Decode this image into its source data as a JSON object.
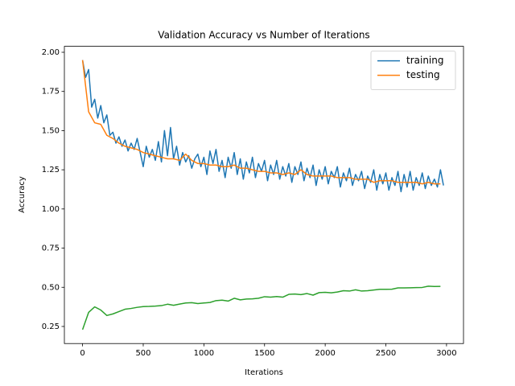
{
  "chart_data": {
    "type": "line",
    "title": "Validation Accuracy vs Number of Iterations",
    "x_label": "Iterations",
    "y_label": "Accuracy",
    "xlim": [
      -150,
      3140
    ],
    "ylim": [
      0.141,
      2.038
    ],
    "xticks": [
      0,
      500,
      1000,
      1500,
      2000,
      2500,
      3000
    ],
    "yticks": [
      0.25,
      {
        "value": 0.5,
        "label": "0.50"
      },
      0.75,
      {
        "value": 1,
        "label": "1.00"
      },
      1.25,
      {
        "value": 1.5,
        "label": "1.50"
      },
      1.75,
      {
        "value": 2,
        "label": "2.00"
      }
    ],
    "legend": "upper right",
    "series": [
      {
        "name": "training",
        "color": "#1f77b4",
        "x": [
          0,
          25,
          50,
          75,
          100,
          125,
          150,
          175,
          200,
          225,
          250,
          275,
          300,
          325,
          350,
          375,
          400,
          425,
          450,
          475,
          500,
          525,
          550,
          575,
          600,
          625,
          650,
          675,
          700,
          725,
          750,
          775,
          800,
          825,
          850,
          875,
          900,
          925,
          950,
          975,
          1000,
          1025,
          1050,
          1075,
          1100,
          1125,
          1150,
          1175,
          1200,
          1225,
          1250,
          1275,
          1300,
          1325,
          1350,
          1375,
          1400,
          1425,
          1450,
          1475,
          1500,
          1525,
          1550,
          1575,
          1600,
          1625,
          1650,
          1675,
          1700,
          1725,
          1750,
          1775,
          1800,
          1825,
          1850,
          1875,
          1900,
          1925,
          1950,
          1975,
          2000,
          2025,
          2050,
          2075,
          2100,
          2125,
          2150,
          2175,
          2200,
          2225,
          2250,
          2275,
          2300,
          2325,
          2350,
          2375,
          2400,
          2425,
          2450,
          2475,
          2500,
          2525,
          2550,
          2575,
          2600,
          2625,
          2650,
          2675,
          2700,
          2725,
          2750,
          2775,
          2800,
          2825,
          2850,
          2875,
          2900,
          2925,
          2950,
          2975
        ],
        "values": [
          1.95,
          1.84,
          1.89,
          1.65,
          1.7,
          1.58,
          1.66,
          1.55,
          1.6,
          1.47,
          1.49,
          1.42,
          1.46,
          1.4,
          1.44,
          1.37,
          1.42,
          1.38,
          1.45,
          1.36,
          1.27,
          1.4,
          1.33,
          1.38,
          1.31,
          1.43,
          1.3,
          1.5,
          1.34,
          1.52,
          1.32,
          1.4,
          1.28,
          1.36,
          1.3,
          1.34,
          1.26,
          1.32,
          1.35,
          1.27,
          1.33,
          1.22,
          1.37,
          1.29,
          1.38,
          1.24,
          1.31,
          1.2,
          1.33,
          1.26,
          1.36,
          1.22,
          1.32,
          1.19,
          1.3,
          1.23,
          1.33,
          1.2,
          1.29,
          1.24,
          1.31,
          1.18,
          1.28,
          1.22,
          1.31,
          1.19,
          1.27,
          1.21,
          1.29,
          1.17,
          1.27,
          1.22,
          1.3,
          1.18,
          1.26,
          1.2,
          1.28,
          1.15,
          1.25,
          1.19,
          1.27,
          1.16,
          1.24,
          1.2,
          1.27,
          1.14,
          1.23,
          1.18,
          1.26,
          1.15,
          1.22,
          1.18,
          1.24,
          1.13,
          1.21,
          1.17,
          1.25,
          1.12,
          1.22,
          1.16,
          1.23,
          1.12,
          1.2,
          1.15,
          1.24,
          1.11,
          1.22,
          1.14,
          1.24,
          1.12,
          1.2,
          1.15,
          1.23,
          1.13,
          1.21,
          1.15,
          1.19,
          1.14,
          1.25,
          1.15
        ]
      },
      {
        "name": "testing",
        "color": "#ff7f0e",
        "x": [
          0,
          50,
          100,
          150,
          200,
          250,
          300,
          350,
          400,
          450,
          500,
          550,
          600,
          650,
          700,
          750,
          800,
          850,
          900,
          950,
          1000,
          1050,
          1100,
          1150,
          1200,
          1250,
          1300,
          1350,
          1400,
          1450,
          1500,
          1550,
          1600,
          1650,
          1700,
          1750,
          1800,
          1850,
          1900,
          1950,
          2000,
          2050,
          2100,
          2150,
          2200,
          2250,
          2300,
          2350,
          2400,
          2450,
          2500,
          2550,
          2600,
          2650,
          2700,
          2750,
          2800,
          2850,
          2900,
          2950
        ],
        "values": [
          1.95,
          1.62,
          1.55,
          1.54,
          1.47,
          1.45,
          1.42,
          1.4,
          1.39,
          1.38,
          1.36,
          1.35,
          1.34,
          1.33,
          1.32,
          1.32,
          1.31,
          1.35,
          1.31,
          1.29,
          1.29,
          1.28,
          1.28,
          1.27,
          1.27,
          1.28,
          1.26,
          1.26,
          1.25,
          1.24,
          1.24,
          1.23,
          1.23,
          1.22,
          1.23,
          1.22,
          1.25,
          1.22,
          1.21,
          1.21,
          1.21,
          1.21,
          1.2,
          1.2,
          1.2,
          1.19,
          1.19,
          1.19,
          1.17,
          1.18,
          1.18,
          1.18,
          1.17,
          1.17,
          1.17,
          1.17,
          1.16,
          1.17,
          1.16,
          1.16
        ]
      },
      {
        "color": "#2ca02c",
        "x": [
          0,
          50,
          100,
          150,
          200,
          250,
          300,
          350,
          400,
          450,
          500,
          550,
          600,
          650,
          700,
          750,
          800,
          850,
          900,
          950,
          1000,
          1050,
          1100,
          1150,
          1200,
          1250,
          1300,
          1350,
          1400,
          1450,
          1500,
          1550,
          1600,
          1650,
          1700,
          1750,
          1800,
          1850,
          1900,
          1950,
          2000,
          2050,
          2100,
          2150,
          2200,
          2250,
          2300,
          2350,
          2400,
          2450,
          2500,
          2550,
          2600,
          2650,
          2700,
          2750,
          2800,
          2850,
          2900,
          2950
        ],
        "values": [
          0.23,
          0.34,
          0.375,
          0.355,
          0.32,
          0.33,
          0.345,
          0.36,
          0.365,
          0.372,
          0.377,
          0.378,
          0.38,
          0.383,
          0.392,
          0.385,
          0.393,
          0.4,
          0.402,
          0.396,
          0.4,
          0.403,
          0.415,
          0.418,
          0.412,
          0.43,
          0.42,
          0.425,
          0.426,
          0.43,
          0.44,
          0.437,
          0.441,
          0.437,
          0.455,
          0.457,
          0.453,
          0.46,
          0.45,
          0.466,
          0.468,
          0.465,
          0.47,
          0.478,
          0.476,
          0.484,
          0.476,
          0.478,
          0.483,
          0.487,
          0.487,
          0.488,
          0.496,
          0.496,
          0.497,
          0.498,
          0.499,
          0.507,
          0.505,
          0.506
        ]
      }
    ]
  }
}
